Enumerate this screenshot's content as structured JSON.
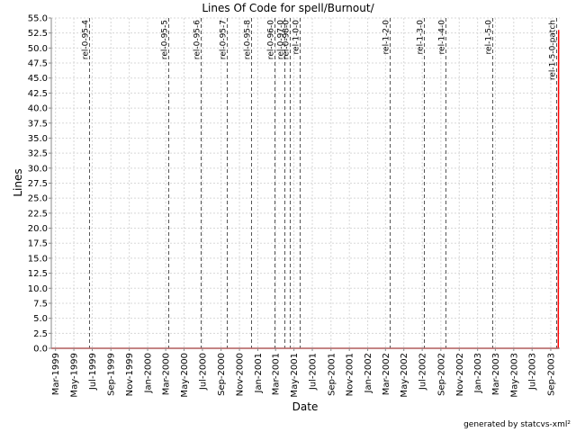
{
  "chart_data": {
    "type": "line",
    "title": "Lines Of Code for spell/Burnout/",
    "xlabel": "Date",
    "ylabel": "Lines",
    "ylim": [
      0,
      55
    ],
    "ytick_step": 2.5,
    "xlim": [
      "1999-02-15",
      "2003-10-01"
    ],
    "x_ticks": [
      "1999-03-01",
      "1999-05-01",
      "1999-07-01",
      "1999-09-01",
      "1999-11-01",
      "2000-01-01",
      "2000-03-01",
      "2000-05-01",
      "2000-07-01",
      "2000-09-01",
      "2000-11-01",
      "2001-01-01",
      "2001-03-01",
      "2001-05-01",
      "2001-07-01",
      "2001-09-01",
      "2001-11-01",
      "2002-01-01",
      "2002-03-01",
      "2002-05-01",
      "2002-07-01",
      "2002-09-01",
      "2002-11-01",
      "2003-01-01",
      "2003-03-01",
      "2003-05-01",
      "2003-07-01",
      "2003-09-01"
    ],
    "x_tick_labels": [
      "Mar-1999",
      "May-1999",
      "Jul-1999",
      "Sep-1999",
      "Nov-1999",
      "Jan-2000",
      "Mar-2000",
      "May-2000",
      "Jul-2000",
      "Sep-2000",
      "Nov-2000",
      "Jan-2001",
      "Mar-2001",
      "May-2001",
      "Jul-2001",
      "Sep-2001",
      "Nov-2001",
      "Jan-2002",
      "Mar-2002",
      "May-2002",
      "Jul-2002",
      "Sep-2002",
      "Nov-2002",
      "Jan-2003",
      "Mar-2003",
      "May-2003",
      "Jul-2003",
      "Sep-2003"
    ],
    "grid": true,
    "series": [
      {
        "color": "#ff0000",
        "points": [
          {
            "x": "1999-02-15",
            "y": 0
          },
          {
            "x": "2003-09-26",
            "y": 0
          },
          {
            "x": "2003-09-27",
            "y": 53
          }
        ]
      }
    ],
    "tags": [
      {
        "label": "rel-0-95-4",
        "date": "1999-06-20"
      },
      {
        "label": "rel-0-95-5",
        "date": "2000-03-10"
      },
      {
        "label": "rel-0-95-6",
        "date": "2000-06-25"
      },
      {
        "label": "rel-0-95-7",
        "date": "2000-09-20"
      },
      {
        "label": "rel-0-95-8",
        "date": "2000-12-10"
      },
      {
        "label": "rel-0-96-0",
        "date": "2001-02-25"
      },
      {
        "label": "rel-0-97-0",
        "date": "2001-03-30"
      },
      {
        "label": "rel-0-98-0",
        "date": "2001-04-18"
      },
      {
        "label": "rel-1-0-0",
        "date": "2001-05-20"
      },
      {
        "label": "rel-1-2-0",
        "date": "2002-03-15"
      },
      {
        "label": "rel-1-3-0",
        "date": "2002-07-08"
      },
      {
        "label": "rel-1-4-0",
        "date": "2002-09-15"
      },
      {
        "label": "rel-1-5-0",
        "date": "2003-02-20"
      },
      {
        "label": "rel-1-5-0-patch",
        "date": "2003-09-20"
      }
    ]
  },
  "footer": "generated by statcvs-xml²"
}
